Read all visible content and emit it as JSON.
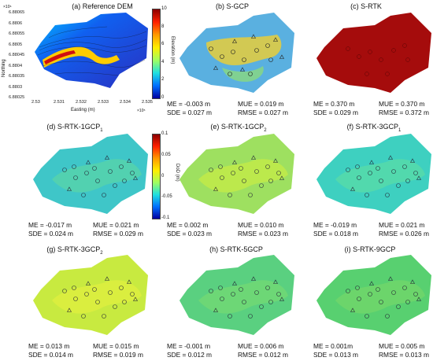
{
  "panels": [
    {
      "id": "a",
      "title": "(a) Reference DEM",
      "sub": ""
    },
    {
      "id": "b",
      "title": "(b) S-GCP",
      "sub": ""
    },
    {
      "id": "c",
      "title": "(c) S-RTK",
      "sub": ""
    },
    {
      "id": "d",
      "title": "(d) S-RTK-1GCP",
      "sub": "1"
    },
    {
      "id": "e",
      "title": "(e) S-RTK-1GCP",
      "sub": "2"
    },
    {
      "id": "f",
      "title": "(f) S-RTK-3GCP",
      "sub": "1"
    },
    {
      "id": "g",
      "title": "(g) S-RTK-3GCP",
      "sub": "2"
    },
    {
      "id": "h",
      "title": "(h) S-RTK-5GCP",
      "sub": ""
    },
    {
      "id": "i",
      "title": "(i) S-RTK-9GCP",
      "sub": ""
    }
  ],
  "stats": {
    "b": {
      "me": "ME = -0.003 m",
      "mue": "MUE = 0.019 m",
      "sde": "SDE = 0.027 m",
      "rmse": "RMSE = 0.027 m"
    },
    "c": {
      "me": "ME = 0.370 m",
      "mue": "MUE = 0.370 m",
      "sde": "SDE = 0.029 m",
      "rmse": "RMSE = 0.372 m"
    },
    "d": {
      "me": "ME = -0.017 m",
      "mue": "MUE = 0.021 m",
      "sde": "SDE = 0.024 m",
      "rmse": "RMSE = 0.029 m"
    },
    "e": {
      "me": "ME = 0.002 m",
      "mue": "MUE = 0.010 m",
      "sde": "SDE = 0.023 m",
      "rmse": "RMSE = 0.023 m"
    },
    "f": {
      "me": "ME = -0.019 m",
      "mue": "MUE = 0.021 m",
      "sde": "SDE = 0.018 m",
      "rmse": "RMSE = 0.026 m"
    },
    "g": {
      "me": "ME = 0.013 m",
      "mue": "MUE = 0.015 m",
      "sde": "SDE = 0.014 m",
      "rmse": "RMSE = 0.019 m"
    },
    "h": {
      "me": "ME = -0.001 m",
      "mue": "MUE = 0.006 m",
      "sde": "SDE = 0.012 m",
      "rmse": "RMSE = 0.012 m"
    },
    "i": {
      "me": "ME = 0.001m",
      "mue": "MUE = 0.005 m",
      "sde": "SDE = 0.013 m",
      "rmse": "RMSE = 0.013 m"
    }
  },
  "reference_axes": {
    "ylabel": "Northing",
    "xlabel": "Easting (m)",
    "y_exponent": "×10⁶",
    "x_exponent": "×10⁵",
    "yticks": [
      "6.88065",
      "6.8806",
      "6.88055",
      "6.8805",
      "6.88045",
      "6.8804",
      "6.88035",
      "6.8803",
      "6.88025"
    ],
    "xticks": [
      "2.53",
      "2.531",
      "2.532",
      "2.533",
      "2.534",
      "2.535"
    ]
  },
  "elevation_colorbar": {
    "label": "Elevation (m)",
    "ticks": [
      "10",
      "8",
      "6",
      "4",
      "2",
      "0"
    ],
    "colors": [
      "#8b0000",
      "#ff2000",
      "#ff9a00",
      "#ffee00",
      "#a0ff60",
      "#20e0e0",
      "#0070ff",
      "#0000a0"
    ]
  },
  "dod_colorbar": {
    "label": "DoD (m)",
    "ticks": [
      "0.1",
      "0.05",
      "0",
      "-0.05",
      "-0.1"
    ],
    "colors": [
      "#8b0000",
      "#ff2000",
      "#ff9a00",
      "#ffee00",
      "#a0ff60",
      "#20e0e0",
      "#0070ff",
      "#0000a0"
    ]
  },
  "surface_colors": {
    "a": "#2a50d8",
    "b": "#5ab0e0",
    "c": "#a50c0c",
    "d": "#3fc6c8",
    "e": "#9ee060",
    "f": "#3ed0c0",
    "g": "#c8ea40",
    "h": "#5ad080",
    "i": "#58d070"
  },
  "overlay_colors": {
    "b": "#f0d030",
    "d": "#5fd8a0",
    "e": "#d0ee40",
    "f": "#60e0a0",
    "g": "#e6f040",
    "h": "#7adc70",
    "i": "#7ad868"
  }
}
